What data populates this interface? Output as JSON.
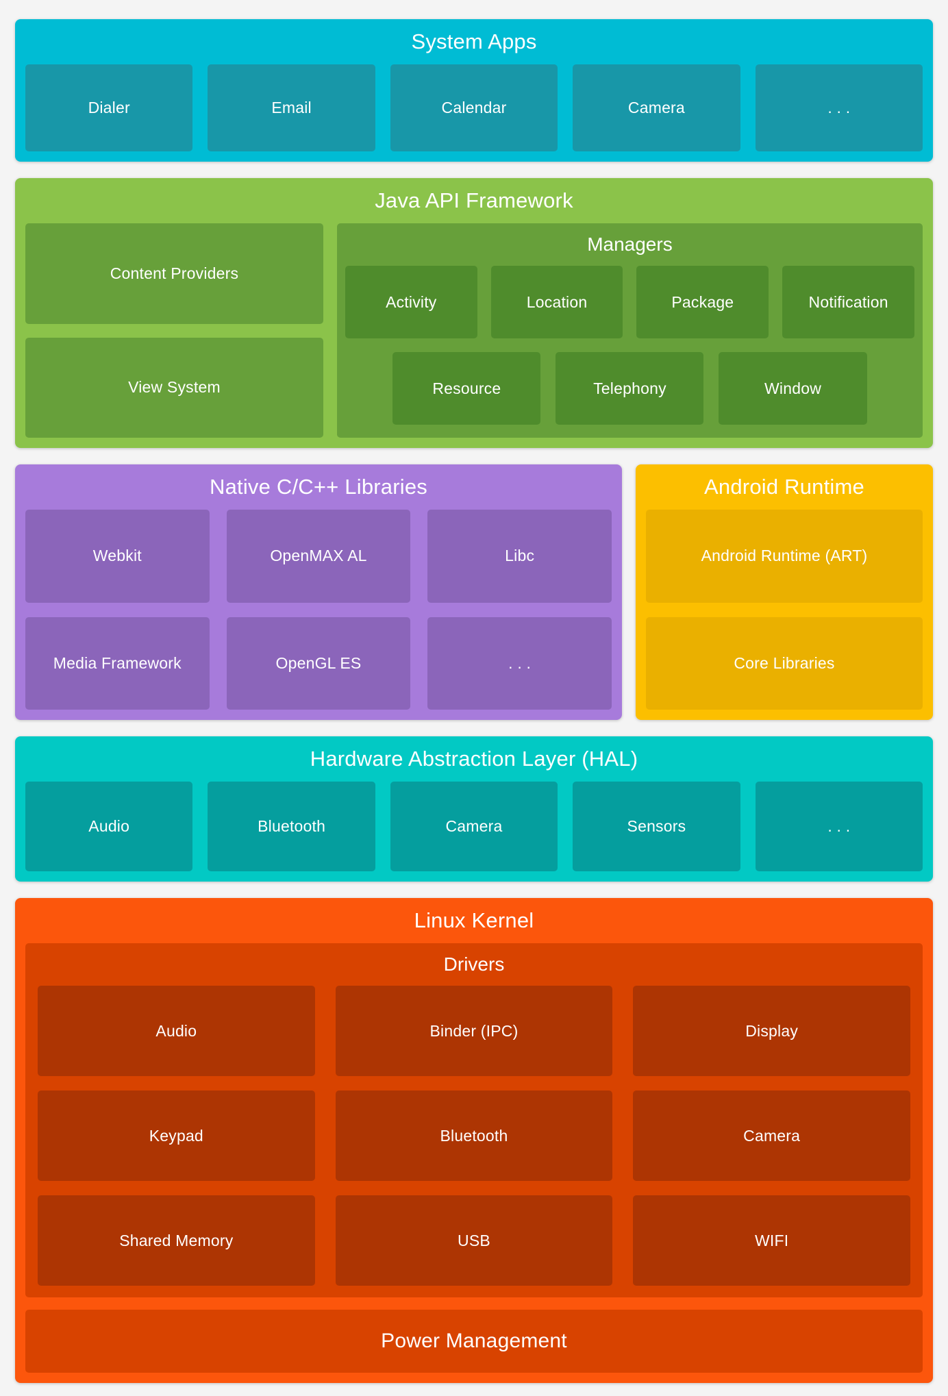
{
  "page": {
    "background": "#f4f4f4",
    "text_color": "#ffffff"
  },
  "layers": {
    "system_apps": {
      "title": "System Apps",
      "colors": {
        "background": "#00bcd4",
        "box": "#1897a8"
      },
      "boxes": [
        "Dialer",
        "Email",
        "Calendar",
        "Camera",
        ". . ."
      ]
    },
    "java_api_framework": {
      "title": "Java API Framework",
      "colors": {
        "background": "#8bc34a",
        "box": "#67a03a",
        "inner_box": "#4f8c2c"
      },
      "boxes": [
        "Content Providers",
        "View System"
      ],
      "managers": {
        "title": "Managers",
        "boxes": [
          "Activity",
          "Location",
          "Package",
          "Notification",
          "Resource",
          "Telephony",
          "Window"
        ]
      }
    },
    "native_libraries": {
      "title": "Native C/C++ Libraries",
      "colors": {
        "background": "#a77bdb",
        "box": "#8b65ba"
      },
      "boxes": [
        "Webkit",
        "OpenMAX AL",
        "Libc",
        "Media Framework",
        "OpenGL ES",
        ". . ."
      ]
    },
    "android_runtime": {
      "title": "Android Runtime",
      "colors": {
        "background": "#fcbf00",
        "box": "#eab000"
      },
      "boxes": [
        "Android Runtime (ART)",
        "Core Libraries"
      ]
    },
    "hal": {
      "title": "Hardware Abstraction Layer (HAL)",
      "colors": {
        "background": "#02c9c4",
        "box": "#059e9e"
      },
      "boxes": [
        "Audio",
        "Bluetooth",
        "Camera",
        "Sensors",
        ". . ."
      ]
    },
    "linux_kernel": {
      "title": "Linux Kernel",
      "colors": {
        "background": "#fc560c",
        "box": "#d84300",
        "inner_box": "#ad3503"
      },
      "drivers": {
        "title": "Drivers",
        "boxes": [
          "Audio",
          "Binder (IPC)",
          "Display",
          "Keypad",
          "Bluetooth",
          "Camera",
          "Shared Memory",
          "USB",
          "WIFI"
        ]
      },
      "power_management": "Power Management"
    }
  }
}
